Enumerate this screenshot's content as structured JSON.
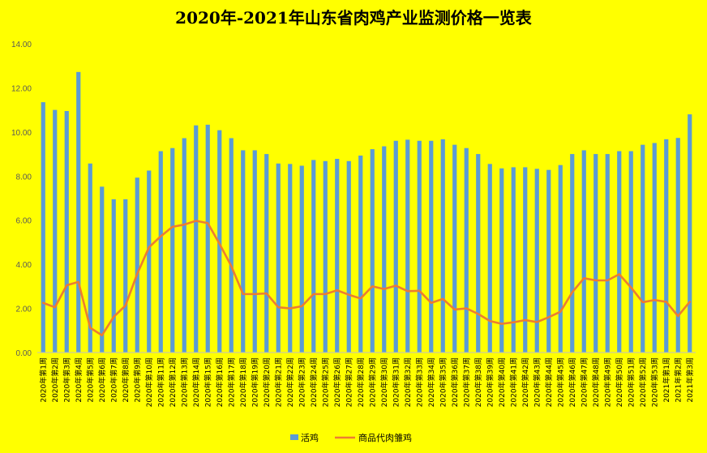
{
  "chart_data": {
    "type": "bar",
    "title": "2020年-2021年山东省肉鸡产业监测价格一览表",
    "xlabel": "",
    "ylabel": "",
    "ylim": [
      0,
      14
    ],
    "yticks": [
      "0.00",
      "2.00",
      "4.00",
      "6.00",
      "8.00",
      "10.00",
      "12.00",
      "14.00"
    ],
    "grid": false,
    "legend": "bottom",
    "categories": [
      "2020年第1周",
      "2020年第2周",
      "2020年第3周",
      "2020年第4周",
      "2020年第5周",
      "2020年第6周",
      "2020年第7周",
      "2020年第8周",
      "2020年第9周",
      "2020年第10周",
      "2020年第11周",
      "2020年第12周",
      "2020年第13周",
      "2020年第14周",
      "2020年第15周",
      "2020年第16周",
      "2020年第17周",
      "2020年第18周",
      "2020年第19周",
      "2020年第20周",
      "2020年第21周",
      "2020年第22周",
      "2020年第23周",
      "2020年第24周",
      "2020年第25周",
      "2020年第26周",
      "2020年第27周",
      "2020年第28周",
      "2020年第29周",
      "2020年第30周",
      "2020年第31周",
      "2020年第32周",
      "2020年第33周",
      "2020年第34周",
      "2020年第35周",
      "2020年第36周",
      "2020年第37周",
      "2020年第38周",
      "2020年第39周",
      "2020年第40周",
      "2020年第41周",
      "2020年第42周",
      "2020年第43周",
      "2020年第44周",
      "2020年第45周",
      "2020年第46周",
      "2020年第47周",
      "2020年第48周",
      "2020年第49周",
      "2020年第50周",
      "2020年第51周",
      "2020年第52周",
      "2020年第53周",
      "2021年第1周",
      "2021年第2周",
      "2021年第3周"
    ],
    "series": [
      {
        "name": "活鸡",
        "type": "bar",
        "color": "#5b9bd5",
        "values": [
          11.35,
          11.0,
          10.95,
          12.72,
          8.57,
          7.52,
          6.95,
          6.95,
          7.93,
          8.25,
          9.13,
          9.27,
          9.72,
          10.3,
          10.33,
          10.08,
          9.72,
          9.17,
          9.17,
          9.0,
          8.57,
          8.55,
          8.47,
          8.73,
          8.68,
          8.78,
          8.68,
          8.93,
          9.22,
          9.35,
          9.6,
          9.65,
          9.6,
          9.6,
          9.67,
          9.42,
          9.27,
          9.0,
          8.55,
          8.35,
          8.4,
          8.4,
          8.33,
          8.28,
          8.5,
          9.0,
          9.17,
          9.0,
          9.0,
          9.13,
          9.13,
          9.42,
          9.5,
          9.67,
          9.73,
          10.8
        ]
      },
      {
        "name": "商品代肉雏鸡",
        "type": "line",
        "color": "#ed7d31",
        "values": [
          2.25,
          2.05,
          3.05,
          3.2,
          1.12,
          0.78,
          1.62,
          2.13,
          3.57,
          4.77,
          5.27,
          5.7,
          5.8,
          5.97,
          5.87,
          4.93,
          3.92,
          2.65,
          2.65,
          2.68,
          2.05,
          2.0,
          2.1,
          2.65,
          2.65,
          2.82,
          2.62,
          2.45,
          3.0,
          2.88,
          3.03,
          2.78,
          2.8,
          2.25,
          2.43,
          1.95,
          2.0,
          1.75,
          1.43,
          1.3,
          1.37,
          1.47,
          1.38,
          1.6,
          1.85,
          2.73,
          3.37,
          3.27,
          3.27,
          3.55,
          2.95,
          2.28,
          2.38,
          2.3,
          1.65,
          2.3
        ]
      }
    ]
  }
}
